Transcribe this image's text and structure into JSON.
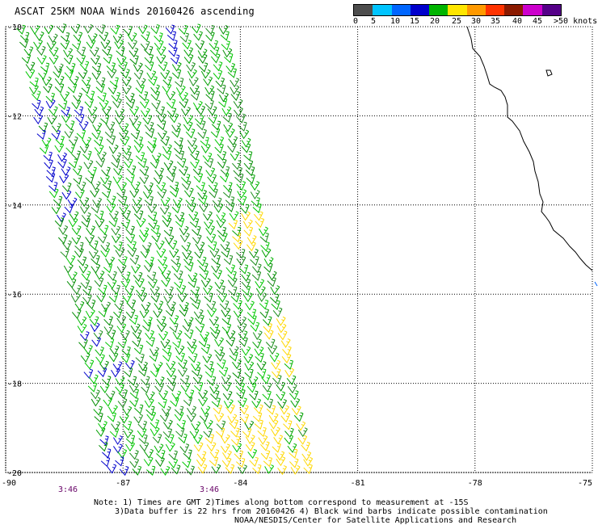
{
  "title": "ASCAT 25KM NOAA Winds 20160426 ascending",
  "legend": {
    "labels": [
      "0",
      "5",
      "10",
      "15",
      "20",
      "25",
      "30",
      "35",
      "40",
      "45",
      ">50 knots"
    ],
    "colors": [
      "#4d4d4d",
      "#00c4ff",
      "#0066ff",
      "#0000cc",
      "#00b400",
      "#ffe600",
      "#ff9900",
      "#ff3300",
      "#8b1a00",
      "#cc00cc",
      "#550088"
    ]
  },
  "axes": {
    "lat_labels": [
      "-10",
      "-12",
      "-14",
      "-16",
      "-18",
      "-20"
    ],
    "lon_labels": [
      "-90",
      "-87",
      "-84",
      "-81",
      "-78",
      "-75"
    ],
    "lat_range": [
      -20,
      -10
    ],
    "lon_range": [
      -90,
      -75
    ],
    "grid": "dotted"
  },
  "swath": {
    "top_lon": [
      -90,
      -84.8
    ],
    "bottom_lon": [
      -87.5,
      -82.0
    ],
    "dominant_wind_knots": "15-20",
    "stronger_region_knots": "20-25",
    "weaker_region_knots": "10-15"
  },
  "time_labels": [
    "3:46",
    "3:46"
  ],
  "footer": {
    "line1": "Note: 1) Times are GMT 2)Times along bottom correspond to measurement at -15S",
    "line2": "3)Data buffer is 22 hrs from 20160426 4) Black wind barbs indicate possible contamination",
    "line3": "NOAA/NESDIS/Center for Satellite Applications and Research"
  }
}
